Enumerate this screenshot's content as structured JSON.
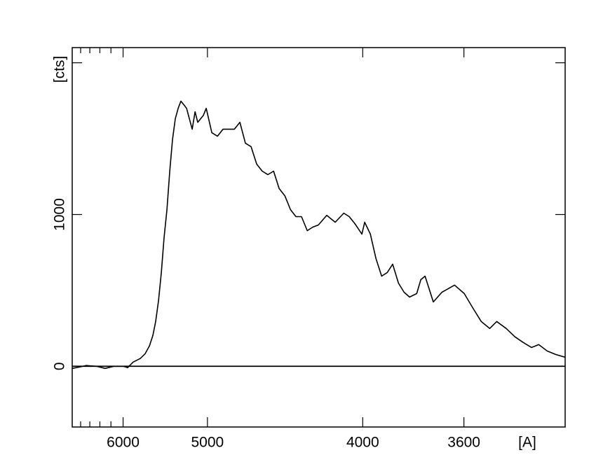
{
  "chart_data": {
    "type": "line",
    "xlabel": "[A]",
    "ylabel": "[cts]",
    "xscale": "inverse-square",
    "xlim": [
      7000,
      3300
    ],
    "xticks": [
      6000,
      5000,
      4000,
      3600
    ],
    "xminorticks": [
      6800,
      6600,
      6400,
      6200
    ],
    "ylim": [
      -400,
      2100
    ],
    "yticks": [
      0,
      1000,
      {
        "value": 2000,
        "label": null
      }
    ],
    "zero_line": true,
    "color": "#000000",
    "x": [
      7000,
      6831,
      6676,
      6459,
      6301,
      6153,
      5994,
      5930,
      5847,
      5748,
      5682,
      5626,
      5582,
      5547,
      5512,
      5478,
      5446,
      5413,
      5381,
      5350,
      5319,
      5288,
      5259,
      5229,
      5200,
      5172,
      5144,
      5116,
      5090,
      5037,
      5011,
      4961,
      4912,
      4865,
      4819,
      4773,
      4730,
      4688,
      4646,
      4606,
      4567,
      4529,
      4491,
      4455,
      4419,
      4384,
      4351,
      4318,
      4285,
      4254,
      4223,
      4178,
      4134,
      4091,
      4064,
      4037,
      4004,
      3991,
      3965,
      3940,
      3915,
      3891,
      3868,
      3844,
      3821,
      3799,
      3771,
      3755,
      3739,
      3708,
      3677,
      3632,
      3599,
      3571,
      3543,
      3516,
      3494,
      3465,
      3439,
      3415,
      3391,
      3371,
      3348,
      3325,
      3300
    ],
    "values": [
      -14,
      -5,
      5,
      0,
      -14,
      0,
      0,
      -9,
      28,
      51,
      83,
      134,
      203,
      295,
      433,
      618,
      848,
      1032,
      1286,
      1493,
      1631,
      1700,
      1747,
      1724,
      1700,
      1631,
      1562,
      1677,
      1608,
      1654,
      1700,
      1539,
      1516,
      1562,
      1562,
      1562,
      1608,
      1470,
      1447,
      1332,
      1286,
      1263,
      1286,
      1171,
      1124,
      1032,
      986,
      986,
      894,
      917,
      931,
      995,
      949,
      1009,
      986,
      940,
      871,
      949,
      871,
      710,
      594,
      618,
      673,
      548,
      488,
      456,
      479,
      571,
      594,
      424,
      488,
      535,
      479,
      387,
      295,
      249,
      295,
      249,
      194,
      157,
      124,
      143,
      101,
      78,
      60
    ]
  }
}
